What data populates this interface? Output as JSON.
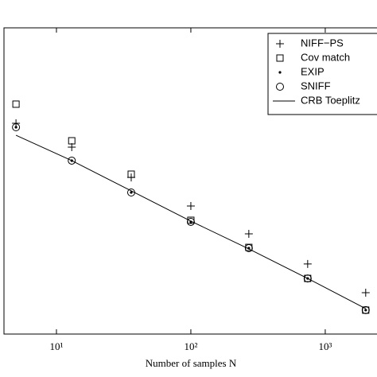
{
  "chart_data": {
    "type": "scatter",
    "xlabel": "Number of samples N",
    "xscale": "log",
    "yscale": "log",
    "xlim": [
      4.07,
      2427
    ],
    "ylim": [
      0.0001,
      3.83
    ],
    "xticks": [
      {
        "value": 10,
        "label": "10¹"
      },
      {
        "value": 100,
        "label": "10²"
      },
      {
        "value": 1000,
        "label": "10³"
      }
    ],
    "legend": "upper right",
    "x": [
      5,
      13,
      36,
      100,
      270,
      740,
      2000
    ],
    "series": [
      {
        "name": "NIFF−PS",
        "marker": "plus",
        "color": "#000000",
        "values": [
          0.143,
          0.0628,
          0.0221,
          0.00825,
          0.00316,
          0.00112,
          0.000416
        ]
      },
      {
        "name": "Cov match",
        "marker": "square",
        "color": "#000000",
        "values": [
          0.276,
          0.0781,
          0.0247,
          0.00504,
          0.00198,
          0.00068,
          0.000228
        ]
      },
      {
        "name": "EXIP",
        "marker": "dot",
        "color": "#000000",
        "values": [
          0.1245,
          0.0394,
          0.01315,
          0.00477,
          0.00193,
          0.00068,
          0.000228
        ]
      },
      {
        "name": "SNIFF",
        "marker": "circle",
        "color": "#000000",
        "values": [
          0.1245,
          0.0394,
          0.01315,
          0.00477,
          0.00193,
          0.00068,
          0.000228
        ]
      },
      {
        "name": "CRB Toeplitz",
        "marker": "line",
        "color": "#000000",
        "values": [
          0.0946,
          0.0394,
          0.0139,
          0.0049,
          0.00188,
          0.00068,
          0.00024
        ]
      }
    ]
  }
}
